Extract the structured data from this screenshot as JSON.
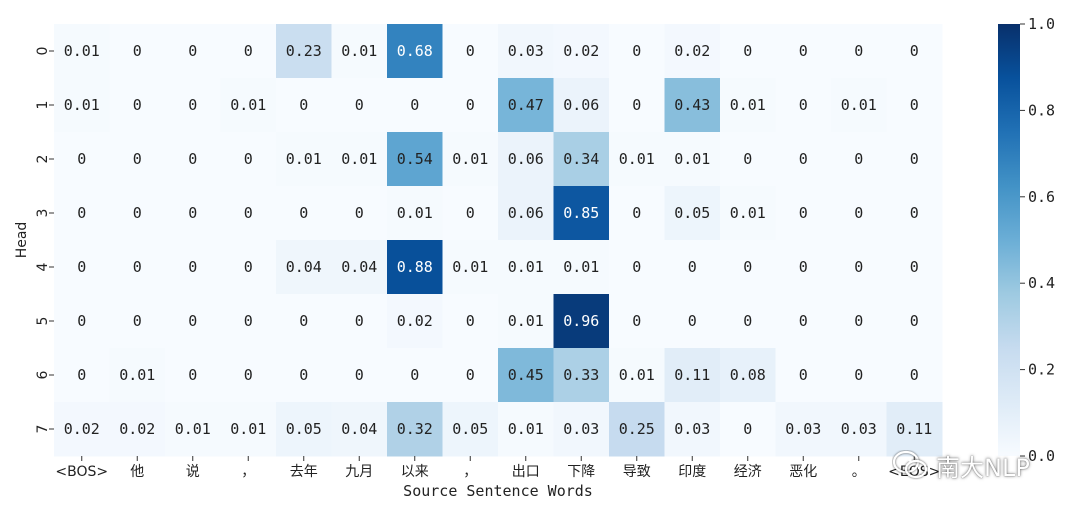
{
  "chart_data": {
    "type": "heatmap",
    "xlabel": "Source Sentence Words",
    "ylabel": "Head",
    "x_tick_labels": [
      "<BOS>",
      "他",
      "说",
      "，",
      "去年",
      "九月",
      "以来",
      "，",
      "出口",
      "下降",
      "导致",
      "印度",
      "经济",
      "恶化",
      "。",
      "<EOS>"
    ],
    "y_tick_labels": [
      "0",
      "1",
      "2",
      "3",
      "4",
      "5",
      "6",
      "7"
    ],
    "values": [
      [
        0.01,
        0,
        0,
        0,
        0.23,
        0.01,
        0.68,
        0,
        0.03,
        0.02,
        0,
        0.02,
        0,
        0,
        0,
        0
      ],
      [
        0.01,
        0,
        0,
        0.01,
        0,
        0,
        0,
        0,
        0.47,
        0.06,
        0,
        0.43,
        0.01,
        0,
        0.01,
        0
      ],
      [
        0,
        0,
        0,
        0,
        0.01,
        0.01,
        0.54,
        0.01,
        0.06,
        0.34,
        0.01,
        0.01,
        0,
        0,
        0,
        0
      ],
      [
        0,
        0,
        0,
        0,
        0,
        0,
        0.01,
        0,
        0.06,
        0.85,
        0,
        0.05,
        0.01,
        0,
        0,
        0
      ],
      [
        0,
        0,
        0,
        0,
        0.04,
        0.04,
        0.88,
        0.01,
        0.01,
        0.01,
        0,
        0,
        0,
        0,
        0,
        0
      ],
      [
        0,
        0,
        0,
        0,
        0,
        0,
        0.02,
        0,
        0.01,
        0.96,
        0,
        0,
        0,
        0,
        0,
        0
      ],
      [
        0,
        0.01,
        0,
        0,
        0,
        0,
        0,
        0,
        0.45,
        0.33,
        0.01,
        0.11,
        0.08,
        0,
        0,
        0
      ],
      [
        0.02,
        0.02,
        0.01,
        0.01,
        0.05,
        0.04,
        0.32,
        0.05,
        0.01,
        0.03,
        0.25,
        0.03,
        0,
        0.03,
        0.03,
        0.11
      ]
    ],
    "colorbar": {
      "range": [
        0.0,
        1.0
      ],
      "tick_labels": [
        "0.0",
        "0.2",
        "0.4",
        "0.6",
        "0.8",
        "1.0"
      ]
    },
    "colormap": "Blues",
    "colors": {
      "low": "#f7fbff",
      "high": "#08306b"
    }
  },
  "watermark": {
    "text": "南大NLP",
    "icon": "wechat-icon"
  }
}
